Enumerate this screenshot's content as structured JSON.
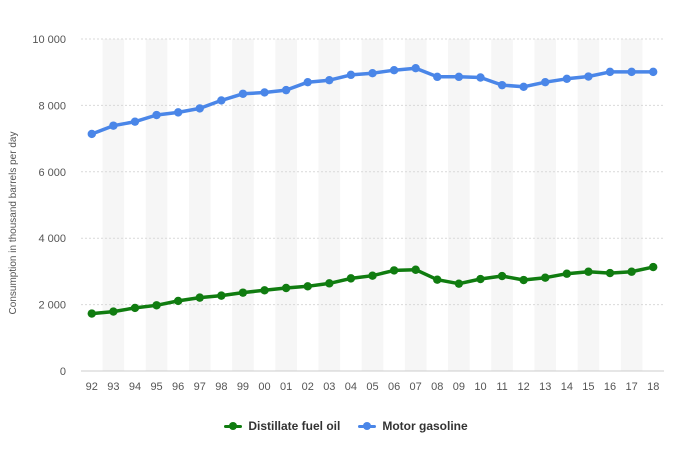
{
  "chart_data": {
    "type": "line",
    "title": "",
    "xlabel": "",
    "ylabel": "Consumption in thousand barrels per day",
    "categories": [
      "92",
      "93",
      "94",
      "95",
      "96",
      "97",
      "98",
      "99",
      "00",
      "01",
      "02",
      "03",
      "04",
      "05",
      "06",
      "07",
      "08",
      "09",
      "10",
      "11",
      "12",
      "13",
      "14",
      "15",
      "16",
      "17",
      "18"
    ],
    "yticks": [
      "0",
      "2 000",
      "4 000",
      "6 000",
      "8 000",
      "10 000"
    ],
    "ylim": [
      0,
      10000
    ],
    "grid": true,
    "legend_position": "bottom-center",
    "series": [
      {
        "name": "Distillate fuel oil",
        "color": "#107c10",
        "values": [
          1730,
          1790,
          1900,
          1980,
          2110,
          2210,
          2270,
          2360,
          2430,
          2500,
          2550,
          2640,
          2790,
          2870,
          3030,
          3050,
          2750,
          2630,
          2770,
          2860,
          2740,
          2810,
          2930,
          2990,
          2950,
          2990,
          3130
        ]
      },
      {
        "name": "Motor gasoline",
        "color": "#4a86e8",
        "values": [
          7140,
          7390,
          7510,
          7710,
          7790,
          7910,
          8150,
          8350,
          8390,
          8460,
          8700,
          8760,
          8920,
          8970,
          9060,
          9120,
          8860,
          8860,
          8840,
          8610,
          8560,
          8700,
          8800,
          8870,
          9010,
          9010,
          9010
        ]
      }
    ]
  }
}
